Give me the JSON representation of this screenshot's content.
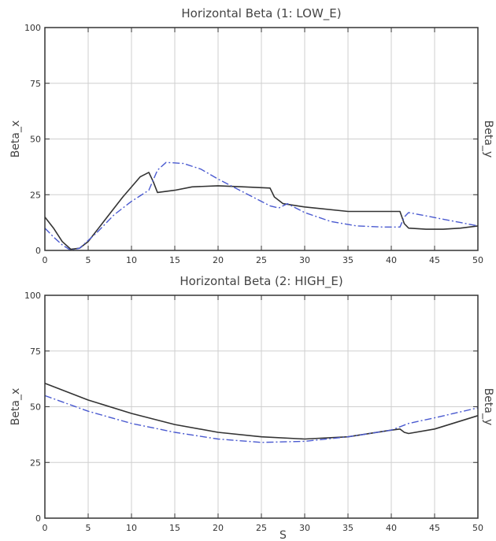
{
  "chart_data": [
    {
      "type": "line",
      "title": "Horizontal Beta (1: LOW_E)",
      "xlabel": "",
      "ylabel": "Beta_x",
      "y2label": "Beta_y",
      "xlim": [
        0,
        50
      ],
      "ylim": [
        0,
        100
      ],
      "xticks": [
        0,
        5,
        10,
        15,
        20,
        25,
        30,
        35,
        40,
        45,
        50
      ],
      "yticks": [
        0,
        25,
        50,
        75,
        100
      ],
      "grid": true,
      "series": [
        {
          "style": "solid",
          "color": "#333333",
          "x": [
            0,
            1,
            2,
            3,
            4,
            5,
            7,
            9,
            11,
            12,
            12.5,
            13,
            15,
            17,
            20,
            23,
            26,
            26.5,
            27.5,
            30,
            35,
            40,
            41,
            41.5,
            42,
            44,
            46,
            48,
            50
          ],
          "y": [
            15,
            10,
            4,
            0.5,
            1,
            4,
            14,
            24,
            33,
            35,
            31,
            26,
            27,
            28.5,
            29,
            28.5,
            28,
            24,
            21,
            19.5,
            17.5,
            17.5,
            17.5,
            12,
            10,
            9.5,
            9.5,
            10,
            11
          ]
        },
        {
          "style": "dash-dot",
          "color": "#4a5ad0",
          "x": [
            0,
            1,
            2,
            3,
            4,
            6,
            8,
            10,
            12,
            13,
            14,
            16,
            18,
            20,
            22,
            24,
            26,
            27,
            28,
            30,
            33,
            36,
            39,
            41,
            41.5,
            42,
            44,
            46,
            48,
            50
          ],
          "y": [
            10,
            6,
            2.5,
            0,
            1,
            8,
            16,
            22,
            27,
            36,
            39.5,
            39,
            36.5,
            32,
            28,
            24,
            20,
            19,
            21,
            17,
            13,
            11,
            10.5,
            10.5,
            15,
            17,
            15.5,
            14,
            12.5,
            11
          ]
        }
      ]
    },
    {
      "type": "line",
      "title": "Horizontal Beta (2: HIGH_E)",
      "xlabel": "S",
      "ylabel": "Beta_x",
      "y2label": "Beta_y",
      "xlim": [
        0,
        50
      ],
      "ylim": [
        0,
        100
      ],
      "xticks": [
        0,
        5,
        10,
        15,
        20,
        25,
        30,
        35,
        40,
        45,
        50
      ],
      "yticks": [
        0,
        25,
        50,
        75,
        100
      ],
      "grid": true,
      "series": [
        {
          "style": "solid",
          "color": "#333333",
          "x": [
            0,
            5,
            10,
            15,
            20,
            25,
            30,
            35,
            40,
            41,
            41.5,
            42,
            45,
            50
          ],
          "y": [
            60.5,
            53,
            47,
            42,
            38.5,
            36.5,
            35.5,
            36.5,
            39.5,
            40,
            38.5,
            38,
            40,
            46
          ]
        },
        {
          "style": "dash-dot",
          "color": "#4a5ad0",
          "x": [
            0,
            5,
            10,
            15,
            20,
            25,
            30,
            35,
            40,
            42,
            45,
            50
          ],
          "y": [
            55,
            48,
            42.5,
            38.5,
            35.5,
            34,
            34.5,
            36.5,
            39.5,
            42.5,
            45,
            49.5
          ]
        }
      ]
    }
  ]
}
